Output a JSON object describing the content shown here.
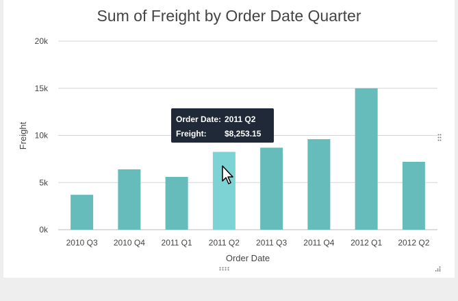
{
  "chart_data": {
    "type": "bar",
    "title": "Sum of Freight by Order Date Quarter",
    "xlabel": "Order Date",
    "ylabel": "Freight",
    "categories": [
      "2010 Q3",
      "2010 Q4",
      "2011 Q1",
      "2011 Q2",
      "2011 Q3",
      "2011 Q4",
      "2012 Q1",
      "2012 Q2"
    ],
    "values": [
      3700,
      6400,
      5600,
      8253.15,
      8700,
      9600,
      15000,
      7200
    ],
    "ylim": [
      0,
      20000
    ],
    "yticks": [
      0,
      5000,
      10000,
      15000,
      20000
    ],
    "ytick_labels": [
      "0k",
      "5k",
      "10k",
      "15k",
      "20k"
    ],
    "grid": true,
    "legend": "none",
    "highlighted_index": 3,
    "bar_color": "#66bbbb",
    "highlight_color": "#7dd3d3"
  },
  "tooltip": {
    "row1_key": "Order Date:",
    "row1_value": "2011 Q2",
    "row2_key": "Freight:",
    "row2_value": "$8,253.15"
  }
}
